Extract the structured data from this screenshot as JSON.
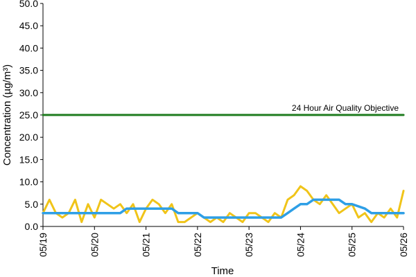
{
  "chart_data": {
    "type": "line",
    "title": "",
    "xlabel": "Time",
    "ylabel": "Concentration (µg/m³)",
    "ylim": [
      0,
      50
    ],
    "xlim": [
      "05/19",
      "05/26"
    ],
    "y_ticks": [
      "0.0",
      "5.0",
      "10.0",
      "15.0",
      "20.0",
      "25.0",
      "30.0",
      "35.0",
      "40.0",
      "45.0",
      "50.0"
    ],
    "x_ticks": [
      "05/19",
      "05/20",
      "05/21",
      "05/22",
      "05/23",
      "05/24",
      "05/25",
      "05/26"
    ],
    "grid": false,
    "legend": "none",
    "series": [
      {
        "color": "#f0c419",
        "x": [
          "05/19 00:00",
          "05/19 03:00",
          "05/19 06:00",
          "05/19 09:00",
          "05/19 12:00",
          "05/19 15:00",
          "05/19 18:00",
          "05/19 21:00",
          "05/20 00:00",
          "05/20 03:00",
          "05/20 06:00",
          "05/20 09:00",
          "05/20 12:00",
          "05/20 15:00",
          "05/20 18:00",
          "05/20 21:00",
          "05/21 00:00",
          "05/21 03:00",
          "05/21 06:00",
          "05/21 09:00",
          "05/21 12:00",
          "05/21 15:00",
          "05/21 18:00",
          "05/21 21:00",
          "05/22 00:00",
          "05/22 03:00",
          "05/22 06:00",
          "05/22 09:00",
          "05/22 12:00",
          "05/22 15:00",
          "05/22 18:00",
          "05/22 21:00",
          "05/23 00:00",
          "05/23 03:00",
          "05/23 06:00",
          "05/23 09:00",
          "05/23 12:00",
          "05/23 15:00",
          "05/23 18:00",
          "05/23 21:00",
          "05/24 00:00",
          "05/24 03:00",
          "05/24 06:00",
          "05/24 09:00",
          "05/24 12:00",
          "05/24 15:00",
          "05/24 18:00",
          "05/24 21:00",
          "05/25 00:00",
          "05/25 03:00",
          "05/25 06:00",
          "05/25 09:00",
          "05/25 12:00",
          "05/25 15:00",
          "05/25 18:00",
          "05/25 21:00",
          "05/26 00:00"
        ],
        "values": [
          3,
          6,
          3,
          2,
          3,
          6,
          1,
          5,
          2,
          6,
          5,
          4,
          5,
          3,
          5,
          1,
          4,
          6,
          5,
          3,
          5,
          1,
          1,
          2,
          3,
          2,
          1,
          2,
          1,
          3,
          2,
          1,
          3,
          3,
          2,
          1,
          3,
          2,
          6,
          7,
          9,
          8,
          6,
          5,
          7,
          5,
          3,
          4,
          5,
          2,
          3,
          1,
          3,
          2,
          4,
          2,
          8
        ]
      },
      {
        "color": "#2e9fe6",
        "x": [
          "05/19 00:00",
          "05/19 12:00",
          "05/19 15:00",
          "05/20 00:00",
          "05/20 09:00",
          "05/20 12:00",
          "05/20 15:00",
          "05/21 00:00",
          "05/21 12:00",
          "05/21 15:00",
          "05/21 21:00",
          "05/22 00:00",
          "05/22 03:00",
          "05/23 00:00",
          "05/23 15:00",
          "05/23 18:00",
          "05/23 21:00",
          "05/24 00:00",
          "05/24 03:00",
          "05/24 06:00",
          "05/24 18:00",
          "05/24 21:00",
          "05/25 00:00",
          "05/25 06:00",
          "05/25 09:00",
          "05/26 00:00"
        ],
        "values": [
          3,
          3,
          3,
          3,
          3,
          3,
          4,
          4,
          4,
          3,
          3,
          3,
          2,
          2,
          2,
          3,
          4,
          5,
          5,
          6,
          6,
          5,
          5,
          4,
          3,
          3
        ]
      },
      {
        "name": "24 Hour Air Quality Objective",
        "color": "#1e7b1e",
        "x": [
          "05/19 00:00",
          "05/26 00:00"
        ],
        "values": [
          25,
          25
        ]
      }
    ]
  }
}
